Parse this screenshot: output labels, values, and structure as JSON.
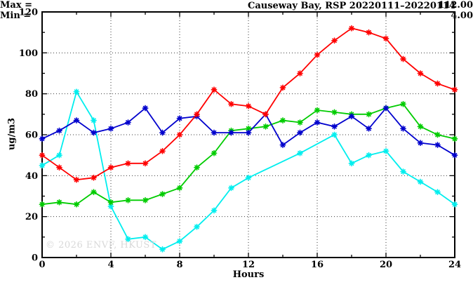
{
  "title": "Causeway Bay, RSP 20220111–20220114",
  "legend": {
    "max_label": "Max =",
    "max_value": "112.00",
    "min_label": "Min =",
    "min_value": "4.00"
  },
  "watermark": "© 2026 ENVF, HKUST",
  "chart_data": {
    "type": "line",
    "title": "Causeway Bay, RSP 20220111–20220114",
    "xlabel": "Hours",
    "ylabel": "ug/m3",
    "xlim": [
      0,
      24
    ],
    "ylim": [
      0,
      120
    ],
    "x_major_ticks": [
      0,
      4,
      8,
      12,
      16,
      20,
      24
    ],
    "x_minor_step": 2,
    "y_major_ticks": [
      0,
      20,
      40,
      60,
      80,
      100,
      120
    ],
    "y_minor_step": 10,
    "grid": true,
    "legend_position": "top-right-inside",
    "annotations": {
      "max": "Max = 112.00",
      "min": "Min = 4.00"
    },
    "marker": "asterisk",
    "x": [
      0,
      1,
      2,
      3,
      4,
      5,
      6,
      7,
      8,
      9,
      10,
      11,
      12,
      13,
      14,
      15,
      16,
      17,
      18,
      19,
      20,
      21,
      22,
      23,
      24
    ],
    "series": [
      {
        "name": "cyan",
        "color": "#00eeee",
        "values": [
          45,
          50,
          81,
          67,
          25,
          9,
          10,
          4,
          8,
          15,
          23,
          34,
          39,
          null,
          null,
          51,
          null,
          60,
          46,
          50,
          52,
          42,
          37,
          32,
          26
        ]
      },
      {
        "name": "green",
        "color": "#00cc00",
        "values": [
          26,
          27,
          26,
          32,
          27,
          28,
          28,
          31,
          34,
          44,
          51,
          62,
          63,
          64,
          67,
          66,
          72,
          71,
          70,
          70,
          73,
          75,
          64,
          60,
          58
        ]
      },
      {
        "name": "blue",
        "color": "#0000cd",
        "values": [
          58,
          62,
          67,
          61,
          63,
          66,
          73,
          61,
          68,
          69,
          61,
          61,
          61,
          70,
          55,
          61,
          66,
          64,
          69,
          63,
          73,
          63,
          56,
          55,
          50
        ]
      },
      {
        "name": "red",
        "color": "#ff0000",
        "values": [
          50,
          44,
          38,
          39,
          44,
          46,
          46,
          52,
          60,
          70,
          82,
          75,
          74,
          70,
          83,
          90,
          99,
          106,
          112,
          110,
          107,
          97,
          90,
          85,
          82
        ]
      }
    ]
  }
}
